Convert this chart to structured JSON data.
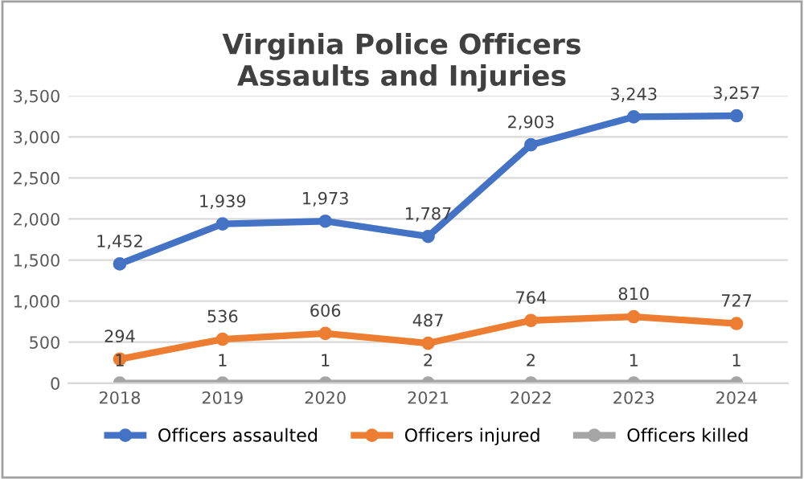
{
  "chart_data": {
    "type": "line",
    "title": "Virginia Police Officers\nAssaults and Injuries",
    "categories": [
      "2018",
      "2019",
      "2020",
      "2021",
      "2022",
      "2023",
      "2024"
    ],
    "series": [
      {
        "name": "Officers assaulted",
        "color": "#4472c4",
        "values": [
          1452,
          1939,
          1973,
          1787,
          2903,
          3243,
          3257
        ],
        "value_labels": [
          "1,452",
          "1,939",
          "1,973",
          "1,787",
          "2,903",
          "3,243",
          "3,257"
        ]
      },
      {
        "name": "Officers injured",
        "color": "#ed7d31",
        "values": [
          294,
          536,
          606,
          487,
          764,
          810,
          727
        ],
        "value_labels": [
          "294",
          "536",
          "606",
          "487",
          "764",
          "810",
          "727"
        ]
      },
      {
        "name": "Officers killed",
        "color": "#a5a5a5",
        "values": [
          1,
          1,
          1,
          2,
          2,
          1,
          1
        ],
        "value_labels": [
          "1",
          "1",
          "1",
          "2",
          "2",
          "1",
          "1"
        ]
      }
    ],
    "ylim": [
      0,
      3500
    ],
    "yticks": [
      0,
      500,
      {
        "value": 1000,
        "label": "1,000"
      },
      {
        "value": 1500,
        "label": "1,500"
      },
      {
        "value": 2000,
        "label": "2,000"
      },
      {
        "value": 2500,
        "label": "2,500"
      },
      {
        "value": 3000,
        "label": "3,000"
      },
      {
        "value": 3500,
        "label": "3,500"
      }
    ],
    "grid": "y",
    "legend": "bottom",
    "marker": "circle",
    "line_style": "solid"
  }
}
